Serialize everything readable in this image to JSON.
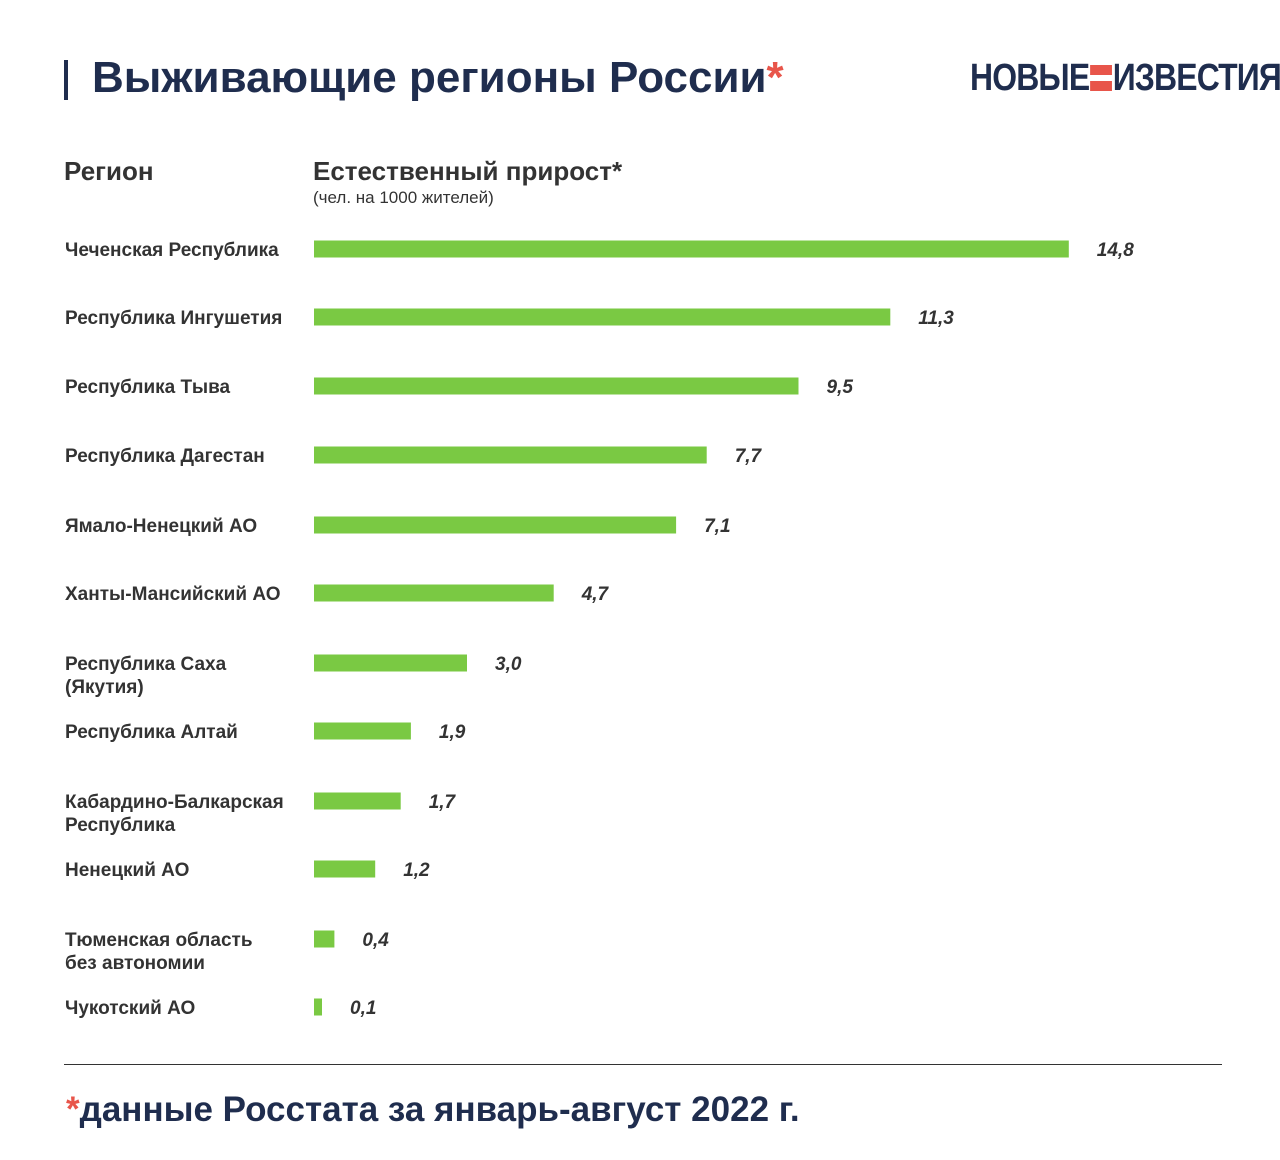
{
  "header": {
    "title": "Выживающие регионы России",
    "title_star": "*",
    "logo_left": "НОВЫЕ",
    "logo_right": "ИЗВЕСТИЯ"
  },
  "columns": {
    "region_label": "Регион",
    "value_label": "Естественный прирост*",
    "value_sublabel": "(чел. на 1000 жителей)"
  },
  "footnote": {
    "star": "*",
    "text": "данные Росстата за январь-август 2022 г."
  },
  "colors": {
    "bar": "#7ac943",
    "title": "#1f2d4e",
    "accent": "#e8554a",
    "text": "#333333"
  },
  "chart_data": {
    "type": "bar",
    "orientation": "horizontal",
    "categories": [
      [
        "Чеченская Республика"
      ],
      [
        "Республика Ингушетия"
      ],
      [
        "Республика Тыва"
      ],
      [
        "Республика Дагестан"
      ],
      [
        "Ямало-Ненецкий АО"
      ],
      [
        "Ханты-Мансийский АО"
      ],
      [
        "Республика Саха",
        "(Якутия)"
      ],
      [
        "Республика Алтай"
      ],
      [
        "Кабардино-Балкарская",
        "Республика"
      ],
      [
        "Ненецкий АО"
      ],
      [
        "Тюменская область",
        "без автономии"
      ],
      [
        "Чукотский АО"
      ]
    ],
    "values": [
      14.8,
      11.3,
      9.5,
      7.7,
      7.1,
      4.7,
      3.0,
      1.9,
      1.7,
      1.2,
      0.4,
      0.1
    ],
    "value_labels": [
      "14,8",
      "11,3",
      "9,5",
      "7,7",
      "7,1",
      "4,7",
      "3,0",
      "1,9",
      "1,7",
      "1,2",
      "0,4",
      "0,1"
    ],
    "title": "Выживающие регионы России",
    "xlabel": "Естественный прирост*",
    "ylabel": "Регион",
    "grid": false,
    "legend": false
  }
}
